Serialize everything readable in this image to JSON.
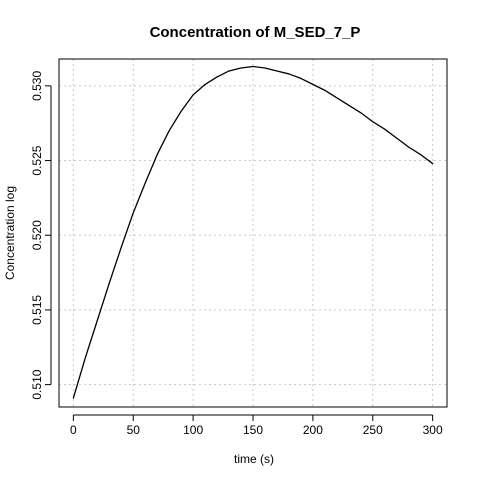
{
  "chart_data": {
    "type": "line",
    "title": "Concentration of M_SED_7_P",
    "xlabel": "time (s)",
    "ylabel": "Concentration log",
    "xlim": [
      -12,
      312
    ],
    "ylim": [
      0.5085,
      0.5318
    ],
    "x_ticks": [
      0,
      50,
      100,
      150,
      200,
      250,
      300
    ],
    "x_tick_labels": [
      "0",
      "50",
      "100",
      "150",
      "200",
      "250",
      "300"
    ],
    "y_ticks": [
      0.51,
      0.515,
      0.52,
      0.525,
      0.53
    ],
    "y_tick_labels": [
      "0.510",
      "0.515",
      "0.520",
      "0.525",
      "0.530"
    ],
    "grid": true,
    "line_color": "#000000",
    "grid_color": "#c8c8c8",
    "series": [
      {
        "x": [
          0,
          10,
          20,
          30,
          40,
          50,
          60,
          70,
          80,
          90,
          100,
          110,
          120,
          130,
          140,
          150,
          160,
          170,
          180,
          190,
          200,
          210,
          220,
          230,
          240,
          250,
          260,
          270,
          280,
          290,
          300
        ],
        "values": [
          0.5091,
          0.5118,
          0.5143,
          0.5168,
          0.5192,
          0.5215,
          0.5235,
          0.5254,
          0.527,
          0.5283,
          0.5294,
          0.5301,
          0.5306,
          0.531,
          0.5312,
          0.5313,
          0.5312,
          0.531,
          0.5308,
          0.5305,
          0.5301,
          0.5297,
          0.5292,
          0.5287,
          0.5282,
          0.5276,
          0.5271,
          0.5265,
          0.5259,
          0.5254,
          0.5248
        ]
      }
    ]
  }
}
